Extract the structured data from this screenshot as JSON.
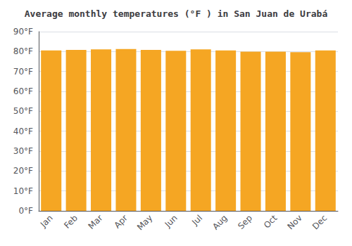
{
  "chart_data": {
    "type": "bar",
    "title": "Average monthly temperatures (°F ) in San Juan de Urabá",
    "categories": [
      "Jan",
      "Feb",
      "Mar",
      "Apr",
      "May",
      "Jun",
      "Jul",
      "Aug",
      "Sep",
      "Oct",
      "Nov",
      "Dec"
    ],
    "values": [
      80.6,
      80.8,
      81.1,
      81.3,
      80.8,
      80.4,
      81.1,
      80.6,
      79.9,
      79.9,
      79.7,
      80.6
    ],
    "color": "#F5A623",
    "ylim": [
      0,
      90
    ],
    "yticks": [
      {
        "value": 0,
        "label": "0°F"
      },
      {
        "value": 10,
        "label": "10°F"
      },
      {
        "value": 20,
        "label": "20°F"
      },
      {
        "value": 30,
        "label": "30°F"
      },
      {
        "value": 40,
        "label": "40°F"
      },
      {
        "value": 50,
        "label": "50°F"
      },
      {
        "value": 60,
        "label": "60°F"
      },
      {
        "value": 70,
        "label": "70°F"
      },
      {
        "value": 80,
        "label": "80°F"
      },
      {
        "value": 90,
        "label": "90°F"
      }
    ],
    "grid": true
  }
}
